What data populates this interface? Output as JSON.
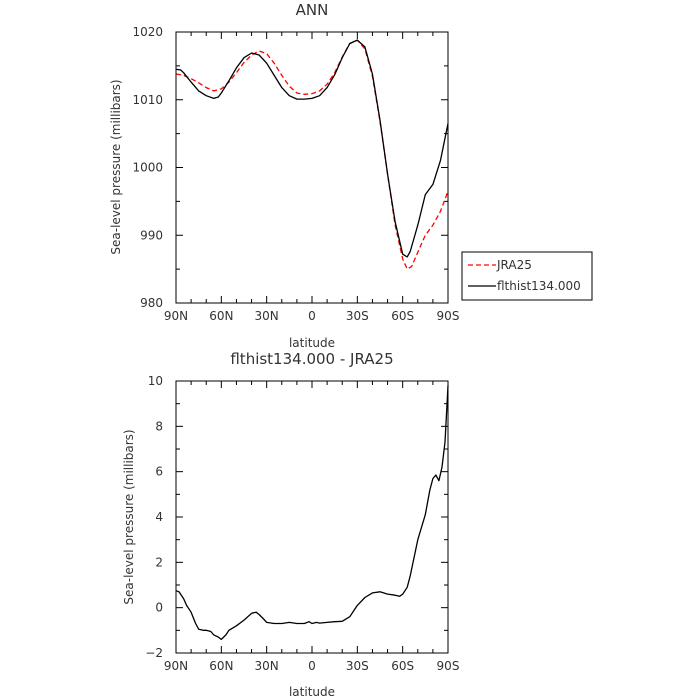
{
  "chart_data": [
    {
      "type": "line",
      "title": "ANN",
      "xlabel": "latitude",
      "ylabel": "Sea-level pressure (millibars)",
      "xlim": [
        90,
        -90
      ],
      "ylim": [
        980,
        1020
      ],
      "x_ticks": [
        90,
        60,
        30,
        0,
        -30,
        -60,
        -90
      ],
      "x_tick_labels": [
        "90N",
        "60N",
        "30N",
        "0",
        "30S",
        "60S",
        "90S"
      ],
      "y_ticks": [
        980,
        990,
        1000,
        1010,
        1020
      ],
      "y_tick_labels": [
        "980",
        "990",
        "1000",
        "1010",
        "1020"
      ],
      "grid": false,
      "legend_position": "right-outside",
      "series": [
        {
          "name": "JRA25",
          "color": "#ff0000",
          "dash": "dashed",
          "x": [
            90,
            85,
            80,
            75,
            70,
            65,
            60,
            55,
            50,
            45,
            40,
            35,
            30,
            25,
            20,
            15,
            10,
            5,
            0,
            -5,
            -10,
            -15,
            -20,
            -25,
            -30,
            -35,
            -40,
            -45,
            -50,
            -55,
            -60,
            -63,
            -66,
            -70,
            -75,
            -80,
            -85,
            -90
          ],
          "y": [
            1013.8,
            1013.6,
            1013.1,
            1012.5,
            1011.8,
            1011.3,
            1011.6,
            1012.6,
            1014.0,
            1015.5,
            1016.6,
            1017.2,
            1016.8,
            1015.4,
            1013.6,
            1012.0,
            1011.0,
            1010.8,
            1010.9,
            1011.3,
            1012.3,
            1014.0,
            1016.3,
            1018.3,
            1018.8,
            1017.5,
            1013.5,
            1006.8,
            999.0,
            991.5,
            986.5,
            985.0,
            985.4,
            987.5,
            990.0,
            991.5,
            993.5,
            996.5
          ]
        },
        {
          "name": "flthist134.000",
          "color": "#000000",
          "dash": "solid",
          "x": [
            90,
            87,
            85,
            80,
            75,
            70,
            65,
            62,
            60,
            55,
            50,
            45,
            40,
            35,
            30,
            25,
            20,
            15,
            10,
            5,
            0,
            -5,
            -10,
            -15,
            -20,
            -25,
            -30,
            -35,
            -40,
            -45,
            -50,
            -55,
            -60,
            -63,
            -65,
            -70,
            -75,
            -80,
            -85,
            -90
          ],
          "y": [
            1014.5,
            1014.4,
            1014.0,
            1012.6,
            1011.3,
            1010.6,
            1010.2,
            1010.4,
            1011.0,
            1012.8,
            1014.7,
            1016.2,
            1016.9,
            1016.6,
            1015.4,
            1013.6,
            1011.8,
            1010.6,
            1010.1,
            1010.1,
            1010.2,
            1010.6,
            1011.8,
            1013.7,
            1016.2,
            1018.3,
            1018.8,
            1017.8,
            1013.8,
            1007.0,
            999.0,
            992.0,
            987.2,
            986.8,
            987.6,
            991.5,
            996.0,
            997.5,
            1001.0,
            1006.5
          ]
        }
      ]
    },
    {
      "type": "line",
      "title": "flthist134.000 - JRA25",
      "xlabel": "latitude",
      "ylabel": "Sea-level pressure (millibars)",
      "xlim": [
        90,
        -90
      ],
      "ylim": [
        -2,
        10
      ],
      "x_ticks": [
        90,
        60,
        30,
        0,
        -30,
        -60,
        -90
      ],
      "x_tick_labels": [
        "90N",
        "60N",
        "30N",
        "0",
        "30S",
        "60S",
        "90S"
      ],
      "y_ticks": [
        -2,
        0,
        2,
        4,
        6,
        8,
        10
      ],
      "y_tick_labels": [
        "−2",
        "0",
        "2",
        "4",
        "6",
        "8",
        "10"
      ],
      "grid": false,
      "series": [
        {
          "color": "#000000",
          "dash": "solid",
          "x": [
            90,
            88,
            85,
            83,
            80,
            77,
            75,
            72,
            70,
            67,
            65,
            62,
            60,
            57,
            55,
            50,
            45,
            40,
            37,
            35,
            32,
            30,
            25,
            20,
            15,
            10,
            5,
            2,
            0,
            -3,
            -5,
            -10,
            -15,
            -20,
            -25,
            -28,
            -30,
            -35,
            -40,
            -45,
            -50,
            -55,
            -58,
            -60,
            -63,
            -65,
            -70,
            -75,
            -78,
            -80,
            -82,
            -84,
            -86,
            -88,
            -90
          ],
          "y": [
            0.75,
            0.7,
            0.4,
            0.1,
            -0.2,
            -0.7,
            -0.95,
            -1.0,
            -1.0,
            -1.05,
            -1.2,
            -1.3,
            -1.4,
            -1.2,
            -1.0,
            -0.8,
            -0.55,
            -0.25,
            -0.2,
            -0.3,
            -0.5,
            -0.65,
            -0.7,
            -0.7,
            -0.65,
            -0.7,
            -0.7,
            -0.62,
            -0.7,
            -0.65,
            -0.68,
            -0.65,
            -0.62,
            -0.6,
            -0.4,
            -0.1,
            0.1,
            0.45,
            0.65,
            0.7,
            0.6,
            0.55,
            0.5,
            0.6,
            0.9,
            1.4,
            3.0,
            4.1,
            5.2,
            5.7,
            5.85,
            5.6,
            6.2,
            7.3,
            9.8
          ]
        }
      ]
    }
  ]
}
